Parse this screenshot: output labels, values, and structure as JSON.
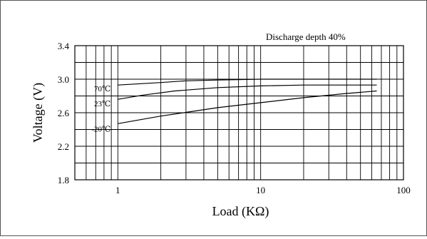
{
  "chart_data": {
    "type": "line",
    "title": "",
    "annotation": "Discharge depth 40%",
    "xlabel": "Load (KΩ)",
    "ylabel": "Voltage (V)",
    "x_scale": "log",
    "xlim": [
      0.5,
      100
    ],
    "ylim": [
      1.8,
      3.4
    ],
    "x_ticks": [
      1,
      10,
      100
    ],
    "x_tick_labels": [
      "1",
      "10",
      "100"
    ],
    "y_ticks": [
      1.8,
      2.2,
      2.6,
      3.0,
      3.4
    ],
    "y_tick_labels": [
      "1.8",
      "2.2",
      "2.6",
      "3.0",
      "3.4"
    ],
    "y_gridlines": [
      1.8,
      2.0,
      2.2,
      2.4,
      2.6,
      2.8,
      3.0,
      3.2,
      3.4
    ],
    "grid": true,
    "series": [
      {
        "name": "70℃",
        "x": [
          1,
          2,
          3,
          5,
          10,
          20,
          40,
          65
        ],
        "y": [
          2.93,
          2.96,
          2.98,
          2.99,
          3.0,
          3.0,
          3.0,
          3.0
        ]
      },
      {
        "name": "23℃",
        "x": [
          1,
          1.5,
          2.5,
          5,
          10,
          20,
          40,
          65
        ],
        "y": [
          2.76,
          2.81,
          2.86,
          2.9,
          2.92,
          2.93,
          2.93,
          2.93
        ]
      },
      {
        "name": "-20℃",
        "x": [
          1,
          2,
          5,
          10,
          20,
          40,
          65
        ],
        "y": [
          2.47,
          2.56,
          2.66,
          2.72,
          2.78,
          2.83,
          2.86
        ]
      }
    ]
  }
}
